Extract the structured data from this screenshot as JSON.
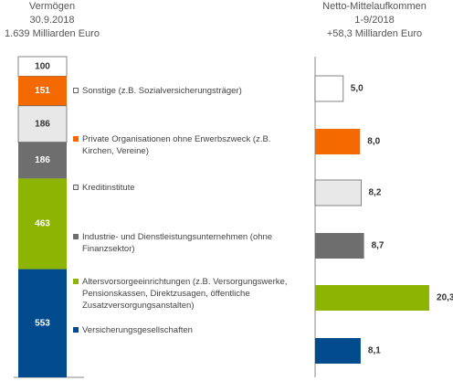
{
  "chart_data": [
    {
      "type": "stacked-bar",
      "title": [
        "Vermögen",
        "30.9.2018",
        "1.639 Milliarden Euro"
      ],
      "categories": [
        "Sonstige (z.B. Sozialversicherungsträger)",
        "Private Organisationen ohne Erwerbszweck (z.B. Kirchen, Vereine)",
        "Kreditinstitute",
        "Industrie- und Dienstleistungsunternehmen (ohne Finanzsektor)",
        "Altersvorsorgeeinrichtungen (z.B. Versorgungswerke, Pensionskassen, Direktzusagen, öffentliche Zusatzversorgungsanstalten)",
        "Versicherungsgesellschaften"
      ],
      "values": [
        100,
        151,
        186,
        186,
        463,
        553
      ],
      "colors": [
        "#ffffff",
        "#f46a00",
        "#e8e8e8",
        "#6e6e6e",
        "#8cb400",
        "#004b8d"
      ]
    },
    {
      "type": "hbar",
      "title": [
        "Netto-Mittelaufkommen",
        "1-9/2018",
        "+58,3 Milliarden Euro"
      ],
      "values": [
        5.0,
        8.0,
        8.2,
        8.7,
        20.3,
        8.1
      ],
      "value_labels": [
        "5,0",
        "8,0",
        "8,2",
        "8,7",
        "20,3",
        "8,1"
      ],
      "colors": [
        "#ffffff",
        "#f46a00",
        "#e8e8e8",
        "#6e6e6e",
        "#8cb400",
        "#004b8d"
      ]
    }
  ]
}
